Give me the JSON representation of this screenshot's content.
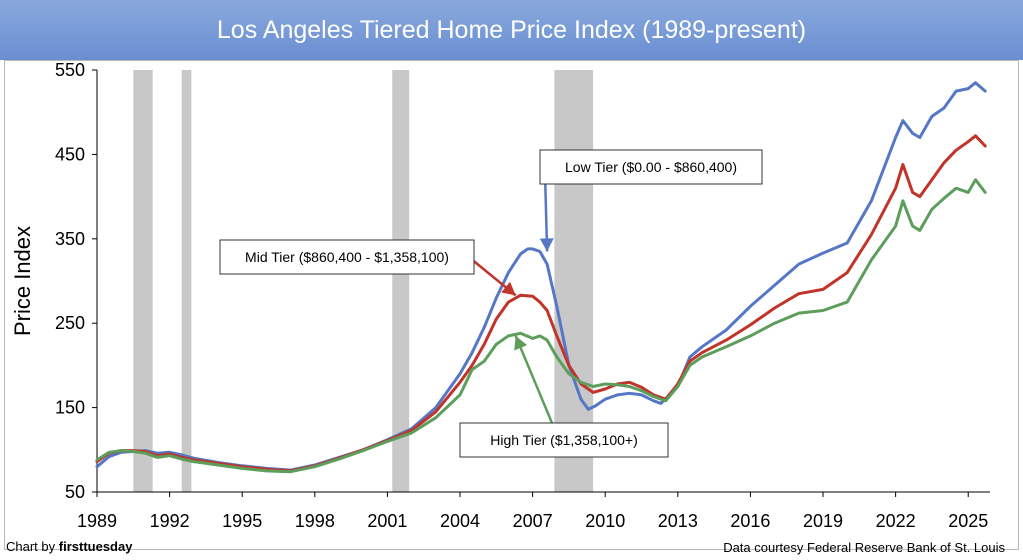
{
  "title": "Los Angeles Tiered Home Price Index (1989-present)",
  "credit_left_prefix": "Chart by",
  "credit_left_brand": "firsttuesday",
  "credit_right": "Data courtesy Federal Reserve Bank of St. Louis",
  "colors": {
    "title_bar": "#7399d6",
    "low_tier": "#5577c6",
    "mid_tier": "#c0342a",
    "high_tier": "#5d9e5c",
    "recession": "#c8c8c8"
  },
  "chart_data": {
    "type": "line",
    "ylabel": "Price Index",
    "xlabel": "",
    "ylim": [
      50,
      550
    ],
    "yticks": [
      50,
      150,
      250,
      350,
      450,
      550
    ],
    "xlim": [
      1989,
      2025.9
    ],
    "xticks": [
      1989,
      1992,
      1995,
      1998,
      2001,
      2004,
      2007,
      2010,
      2013,
      2016,
      2019,
      2022,
      2025
    ],
    "grid": false,
    "recession_bands": [
      [
        1990.5,
        1991.3
      ],
      [
        1992.5,
        1992.9
      ],
      [
        2001.2,
        2001.9
      ],
      [
        2007.9,
        2009.5
      ]
    ],
    "series": [
      {
        "name": "Low Tier ($0.00 - $860,400)",
        "color_key": "low_tier",
        "x": [
          1989,
          1989.5,
          1990,
          1990.5,
          1991,
          1991.5,
          1992,
          1992.5,
          1993,
          1994,
          1995,
          1996,
          1997,
          1998,
          1999,
          2000,
          2001,
          2002,
          2003,
          2004,
          2004.5,
          2005,
          2005.5,
          2006,
          2006.5,
          2006.8,
          2007,
          2007.3,
          2007.6,
          2008,
          2008.5,
          2009,
          2009.3,
          2009.6,
          2010,
          2010.5,
          2011,
          2011.5,
          2012,
          2012.3,
          2013,
          2013.5,
          2014,
          2015,
          2016,
          2017,
          2018,
          2019,
          2020,
          2021,
          2022,
          2022.3,
          2022.7,
          2023,
          2023.5,
          2024,
          2024.5,
          2025,
          2025.3,
          2025.7
        ],
        "y": [
          80,
          92,
          97,
          98,
          99,
          96,
          97,
          94,
          90,
          85,
          81,
          78,
          76,
          82,
          91,
          100,
          112,
          125,
          150,
          190,
          215,
          245,
          280,
          310,
          332,
          338,
          338,
          335,
          320,
          270,
          200,
          160,
          148,
          152,
          160,
          165,
          167,
          165,
          158,
          155,
          175,
          210,
          222,
          242,
          270,
          295,
          320,
          333,
          345,
          395,
          470,
          490,
          475,
          470,
          495,
          505,
          525,
          528,
          535,
          525
        ]
      },
      {
        "name": "Mid Tier ($860,400 - $1,358,100)",
        "color_key": "mid_tier",
        "x": [
          1989,
          1989.5,
          1990,
          1990.5,
          1991,
          1991.5,
          1992,
          1992.5,
          1993,
          1994,
          1995,
          1996,
          1997,
          1998,
          1999,
          2000,
          2001,
          2002,
          2003,
          2004,
          2004.5,
          2005,
          2005.5,
          2006,
          2006.5,
          2007,
          2007.3,
          2007.6,
          2008,
          2008.5,
          2009,
          2009.5,
          2010,
          2010.5,
          2011,
          2011.5,
          2012,
          2012.5,
          2013,
          2013.5,
          2014,
          2015,
          2016,
          2017,
          2018,
          2019,
          2020,
          2021,
          2022,
          2022.3,
          2022.7,
          2023,
          2023.5,
          2024,
          2024.5,
          2025,
          2025.3,
          2025.7
        ],
        "y": [
          86,
          96,
          99,
          99,
          98,
          93,
          95,
          91,
          88,
          84,
          80,
          77,
          75,
          81,
          90,
          100,
          111,
          123,
          145,
          180,
          200,
          225,
          255,
          275,
          283,
          282,
          275,
          265,
          235,
          200,
          178,
          168,
          172,
          178,
          180,
          174,
          165,
          160,
          178,
          205,
          215,
          230,
          248,
          268,
          285,
          290,
          310,
          355,
          410,
          438,
          405,
          400,
          420,
          440,
          455,
          465,
          472,
          460
        ]
      },
      {
        "name": "High Tier ($1,358,100+)",
        "color_key": "high_tier",
        "x": [
          1989,
          1989.5,
          1990,
          1990.5,
          1991,
          1991.5,
          1992,
          1992.5,
          1993,
          1994,
          1995,
          1996,
          1997,
          1998,
          1999,
          2000,
          2001,
          2002,
          2003,
          2004,
          2004.5,
          2005,
          2005.5,
          2006,
          2006.5,
          2007,
          2007.3,
          2007.6,
          2008,
          2008.5,
          2009,
          2009.5,
          2010,
          2010.5,
          2011,
          2011.5,
          2012,
          2012.5,
          2013,
          2013.5,
          2014,
          2015,
          2016,
          2017,
          2018,
          2019,
          2020,
          2021,
          2022,
          2022.3,
          2022.7,
          2023,
          2023.5,
          2024,
          2024.5,
          2025,
          2025.3,
          2025.7
        ],
        "y": [
          88,
          97,
          99,
          98,
          96,
          91,
          93,
          89,
          86,
          82,
          78,
          75,
          74,
          80,
          89,
          99,
          110,
          120,
          138,
          165,
          195,
          205,
          225,
          235,
          238,
          232,
          235,
          230,
          210,
          190,
          180,
          175,
          178,
          177,
          175,
          170,
          163,
          158,
          175,
          200,
          210,
          222,
          235,
          250,
          262,
          265,
          275,
          325,
          365,
          395,
          365,
          360,
          385,
          398,
          410,
          405,
          420,
          405
        ]
      }
    ],
    "annotations": [
      {
        "text": "Low Tier ($0.00 - $860,400)",
        "color_key": "low_tier",
        "arrow_to": [
          2007.6,
          335
        ]
      },
      {
        "text": "Mid Tier ($860,400 - $1,358,100)",
        "color_key": "mid_tier",
        "arrow_to": [
          2006.3,
          283
        ]
      },
      {
        "text": "High Tier ($1,358,100+)",
        "color_key": "high_tier",
        "arrow_to": [
          2006.3,
          235
        ]
      }
    ]
  }
}
